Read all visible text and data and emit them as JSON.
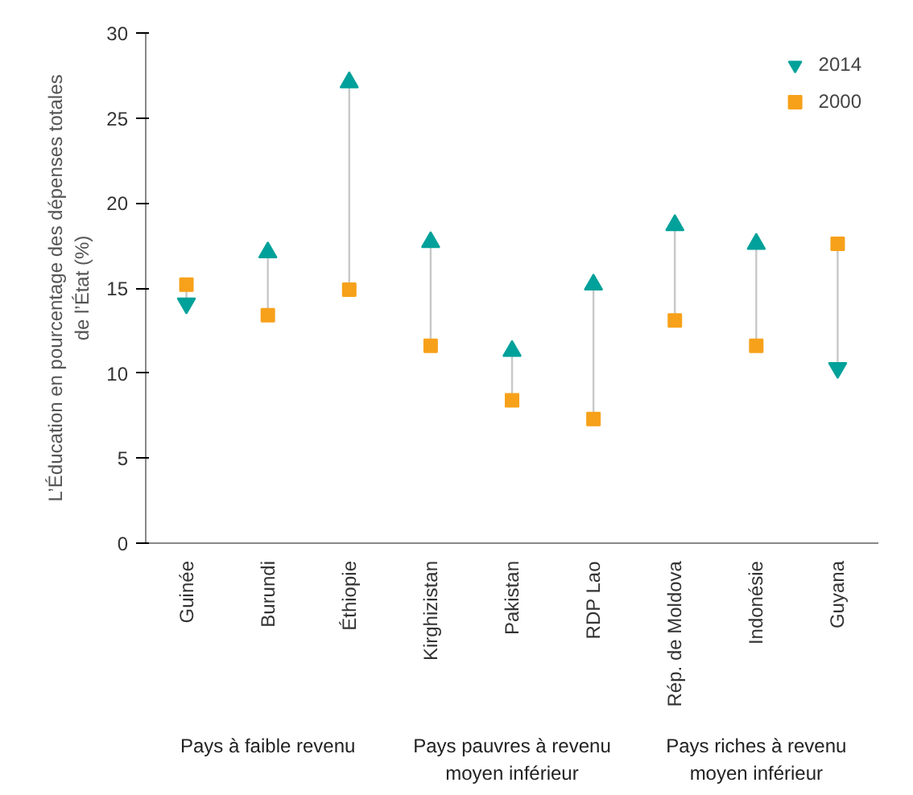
{
  "chart_data": {
    "type": "scatter",
    "ylabel": "L’Éducation en pourcentage des dépenses totales\nde l’État (%)",
    "categories": [
      "Guinée",
      "Burundi",
      "Éthiopie",
      "Kirghizistan",
      "Pakistan",
      "RDP Lao",
      "Rép. de Moldova",
      "Indonésie",
      "Guyana"
    ],
    "series": [
      {
        "name": "2014",
        "color": "#00a19a",
        "marker": "triangle",
        "values": [
          14.1,
          17.1,
          27.1,
          17.7,
          11.3,
          15.2,
          18.7,
          17.6,
          10.3
        ]
      },
      {
        "name": "2000",
        "color": "#f7a11a",
        "marker": "square",
        "values": [
          15.2,
          13.4,
          14.9,
          11.6,
          8.4,
          7.3,
          13.1,
          11.6,
          17.6
        ]
      }
    ],
    "annotations": [
      "Pays à faible revenu",
      "Pays pauvres à revenu\nmoyen inférieur",
      "Pays riches à revenu\nmoyen inférieur"
    ],
    "ylim": [
      0,
      30
    ],
    "yticks": [
      0,
      5,
      10,
      15,
      20,
      25,
      30
    ],
    "grid": false,
    "legend": "top right"
  }
}
